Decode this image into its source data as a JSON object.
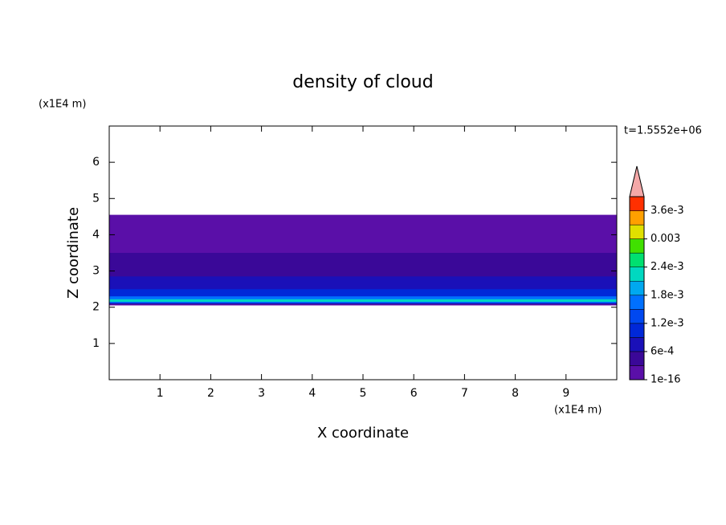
{
  "chart_data": {
    "type": "contour",
    "title": "density of cloud",
    "x_label": "X coordinate",
    "y_label": "Z coordinate",
    "x_unit": "(x1E4 m)",
    "y_unit": "(x1E4 m)",
    "annotation": "t=1.5552e+06",
    "xlim": [
      0,
      10
    ],
    "xticks": [
      1,
      2,
      3,
      4,
      5,
      6,
      7,
      8,
      9
    ],
    "ylim": [
      0,
      7
    ],
    "yticks": [
      1,
      2,
      3,
      4,
      5,
      6
    ],
    "colorbar": {
      "lim": [
        0,
        0.0039
      ],
      "colors": [
        "#5a0fa8",
        "#3a0898",
        "#1a10b8",
        "#0028d8",
        "#0048f0",
        "#0070ff",
        "#00a8f0",
        "#00d8c0",
        "#00e070",
        "#40e000",
        "#e0e000",
        "#ffa000",
        "#ff3000"
      ],
      "over_color": "#f4a8a8",
      "ticks": [
        {
          "value": 1e-16,
          "label": "1e-16"
        },
        {
          "value": 0.0006,
          "label": "6e-4"
        },
        {
          "value": 0.0012,
          "label": "1.2e-3"
        },
        {
          "value": 0.0018,
          "label": "1.8e-3"
        },
        {
          "value": 0.0024,
          "label": "2.4e-3"
        },
        {
          "value": 0.003,
          "label": "0.003"
        },
        {
          "value": 0.0036,
          "label": "3.6e-3"
        }
      ]
    },
    "bands": [
      {
        "level": 0,
        "zlim": [
          2.05,
          4.55
        ]
      },
      {
        "level": 1,
        "zlim": [
          2.08,
          3.5
        ]
      },
      {
        "level": 2,
        "zlim": [
          2.1,
          2.85
        ]
      },
      {
        "level": 3,
        "zlim": [
          2.1,
          2.5
        ]
      },
      {
        "level": 5,
        "zlim": [
          2.12,
          2.3
        ]
      },
      {
        "level": 7,
        "zlim": [
          2.15,
          2.22
        ]
      }
    ]
  }
}
